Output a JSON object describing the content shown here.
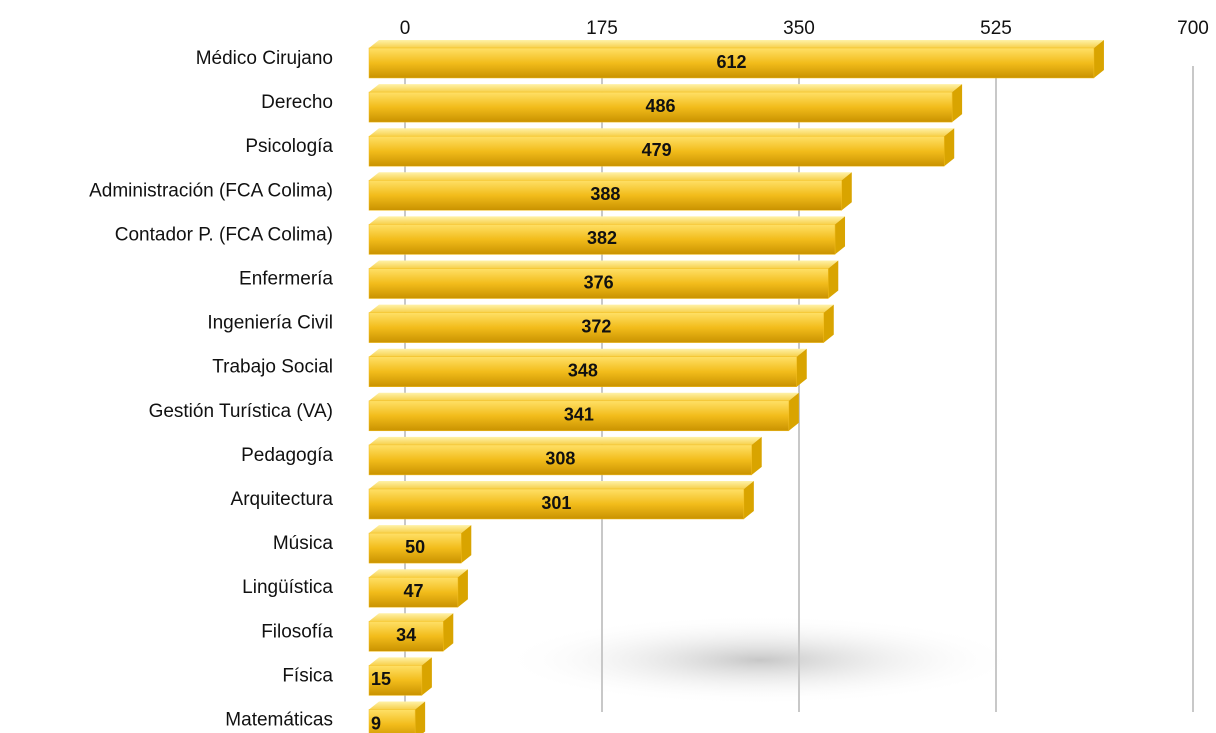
{
  "chart_data": {
    "type": "bar",
    "orientation": "horizontal",
    "categories": [
      "Médico Cirujano",
      "Derecho",
      "Psicología",
      "Administración (FCA Colima)",
      "Contador P. (FCA Colima)",
      "Enfermería",
      "Ingeniería Civil",
      "Trabajo Social",
      "Gestión Turística (VA)",
      "Pedagogía",
      "Arquitectura",
      "Música",
      "Lingüística",
      "Filosofía",
      "Física",
      "Matemáticas"
    ],
    "values": [
      612,
      486,
      479,
      388,
      382,
      376,
      372,
      348,
      341,
      308,
      301,
      50,
      47,
      34,
      15,
      9
    ],
    "color": "#f2bc1b",
    "xlim": [
      0,
      700
    ],
    "xticks": [
      0,
      175,
      350,
      525,
      700
    ],
    "grid": true
  }
}
